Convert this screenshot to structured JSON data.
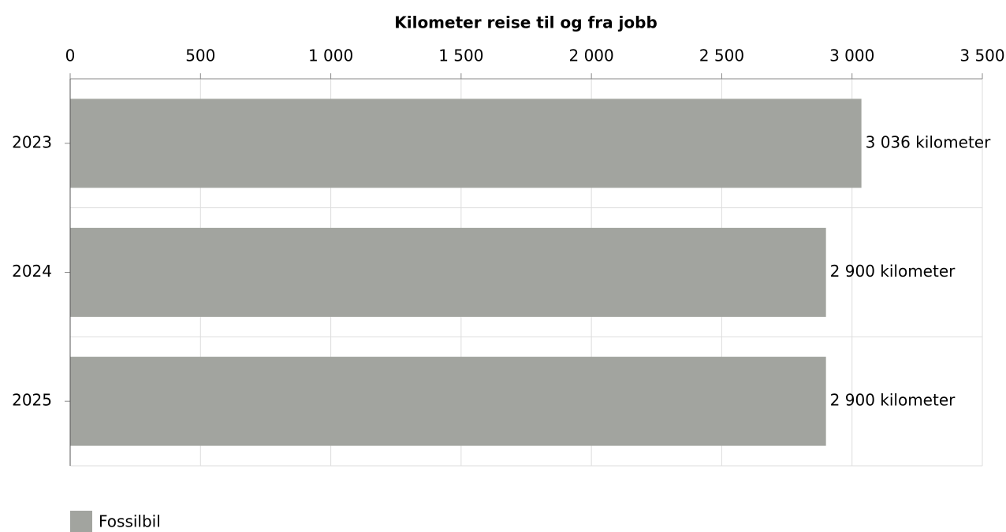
{
  "chart_data": {
    "type": "bar",
    "orientation": "horizontal",
    "title": "Kilometer reise til og fra jobb",
    "categories": [
      "2023",
      "2024",
      "2025"
    ],
    "series": [
      {
        "name": "Fossilbil",
        "color": "#a2a49f",
        "values": [
          3036,
          2900,
          2900
        ],
        "value_labels": [
          "3 036 kilometer",
          "2 900 kilometer",
          "2 900 kilometer"
        ]
      }
    ],
    "xlim": [
      0,
      3500
    ],
    "xticks": [
      0,
      500,
      {
        "value": 1000,
        "label": "1 000"
      },
      {
        "value": 1500,
        "label": "1 500"
      },
      {
        "value": 2000,
        "label": "2 000"
      },
      {
        "value": 2500,
        "label": "2 500"
      },
      {
        "value": 3000,
        "label": "3 000"
      },
      {
        "value": 3500,
        "label": "3 500"
      }
    ],
    "grid": true,
    "legend": "bottom-left"
  }
}
